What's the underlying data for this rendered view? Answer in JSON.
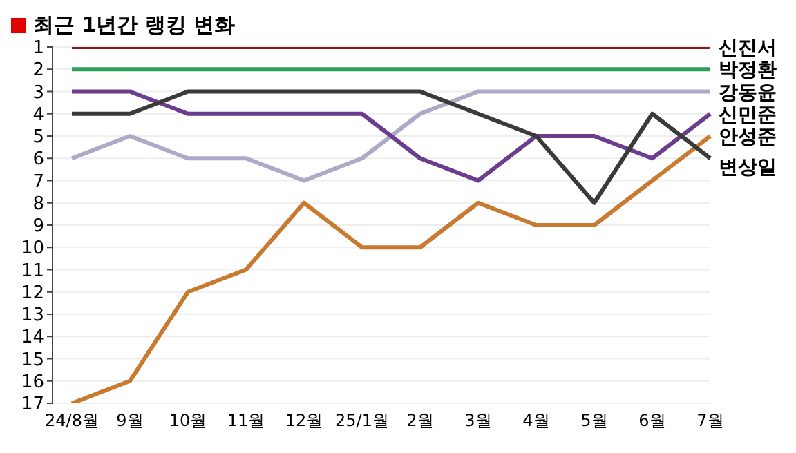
{
  "chart_data": {
    "type": "line",
    "title": "최근 1년간 랭킹 변화",
    "categories": [
      "24/8월",
      "9월",
      "10월",
      "11월",
      "12월",
      "25/1월",
      "2월",
      "3월",
      "4월",
      "5월",
      "6월",
      "7월"
    ],
    "series": [
      {
        "name": "신진서",
        "color": "#8b1a1a",
        "values": [
          1,
          1,
          1,
          1,
          1,
          1,
          1,
          1,
          1,
          1,
          1,
          1
        ]
      },
      {
        "name": "박정환",
        "color": "#2e9e5b",
        "values": [
          2,
          2,
          2,
          2,
          2,
          2,
          2,
          2,
          2,
          2,
          2,
          2
        ]
      },
      {
        "name": "강동윤",
        "color": "#b0a8c8",
        "values": [
          6,
          5,
          6,
          6,
          7,
          6,
          4,
          3,
          3,
          3,
          3,
          3
        ]
      },
      {
        "name": "신민준",
        "color": "#6a3d8f",
        "values": [
          3,
          3,
          4,
          4,
          4,
          4,
          6,
          7,
          5,
          5,
          6,
          4
        ]
      },
      {
        "name": "안성준",
        "color": "#c87a30",
        "values": [
          17,
          16,
          12,
          11,
          8,
          10,
          10,
          8,
          9,
          9,
          7,
          5
        ]
      },
      {
        "name": "변상일",
        "color": "#3a3a3a",
        "values": [
          4,
          4,
          3,
          3,
          3,
          3,
          3,
          4,
          5,
          8,
          4,
          6
        ]
      }
    ],
    "ylim": [
      17,
      1
    ],
    "yticks": [
      1,
      2,
      3,
      4,
      5,
      6,
      7,
      8,
      9,
      10,
      11,
      12,
      13,
      14,
      15,
      16,
      17
    ],
    "grid": "y",
    "legend": false,
    "marker": "none",
    "line_style": "solid"
  }
}
